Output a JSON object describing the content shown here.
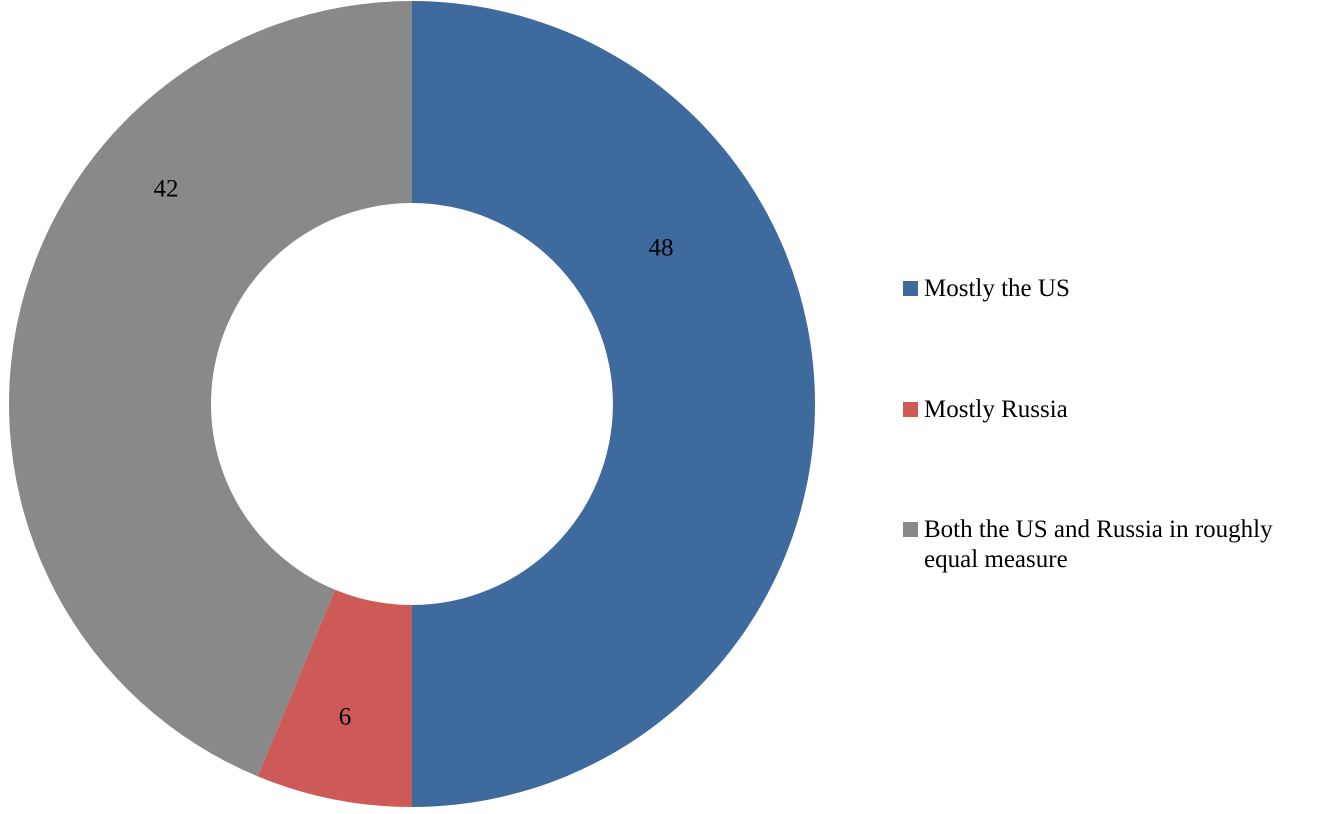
{
  "chart_data": {
    "type": "pie",
    "variant": "donut",
    "title": "",
    "categories": [
      "Mostly the US",
      "Mostly Russia",
      "Both the US and Russia in roughly equal measure"
    ],
    "values": [
      48,
      6,
      42
    ],
    "colors": [
      "#3F6A9E",
      "#CD5A56",
      "#898989"
    ],
    "data_labels": [
      "48",
      "6",
      "42"
    ],
    "legend_position": "right"
  }
}
